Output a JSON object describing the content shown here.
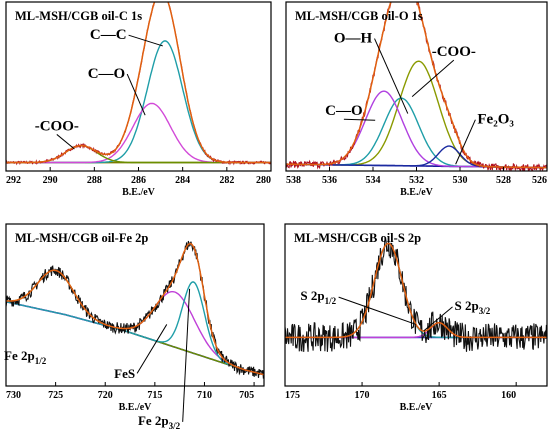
{
  "chart_data": [
    {
      "type": "line",
      "title": "ML-MSH/CGB oil-C 1s",
      "xlabel": "B.E./eV",
      "xlim": [
        292,
        280
      ],
      "ticks": [
        292,
        290,
        288,
        286,
        284,
        282,
        280
      ],
      "tick_labels": [
        "292",
        "290",
        "288",
        "286",
        "284",
        "282",
        "280"
      ],
      "y_axis_visible": false,
      "noise": 0.008,
      "background": {
        "name": "",
        "x": [
          292,
          280
        ],
        "y": [
          0.05,
          0.05
        ],
        "color": "#7a7a00"
      },
      "components": [
        {
          "name": "C—C",
          "center": 284.8,
          "amp": 0.72,
          "width": 0.8,
          "color": "#1f9ea8"
        },
        {
          "name": "C—O",
          "center": 285.4,
          "amp": 0.35,
          "width": 0.85,
          "color": "#d24ad8"
        },
        {
          "name": "-COO-",
          "center": 288.6,
          "amp": 0.1,
          "width": 0.7,
          "color": "#6b8f00"
        }
      ],
      "envelope_color": "#e06010",
      "raw_color": "#b01020",
      "labels": [
        {
          "text": "C—C",
          "at": [
            288.2,
            0.78
          ],
          "line_to": [
            284.9,
            0.74
          ]
        },
        {
          "text": "C—O",
          "at": [
            288.3,
            0.55
          ],
          "line_to": [
            285.7,
            0.33
          ]
        },
        {
          "text": "-COO-",
          "at": [
            290.7,
            0.24
          ],
          "line_to": [
            288.9,
            0.13
          ]
        }
      ]
    },
    {
      "type": "line",
      "title": "ML-MSH/CGB oil-O 1s",
      "xlabel": "B.E./eV",
      "xlim": [
        538,
        526
      ],
      "ticks": [
        538,
        536,
        534,
        532,
        530,
        528,
        526
      ],
      "tick_labels": [
        "538",
        "536",
        "534",
        "532",
        "530",
        "528",
        "526"
      ],
      "y_axis_visible": false,
      "noise": 0.02,
      "background": {
        "name": "",
        "x": [
          538,
          526
        ],
        "y": [
          0.04,
          0.02
        ],
        "color": "#1a1aa0"
      },
      "components": [
        {
          "name": "-COO-",
          "center": 531.9,
          "amp": 0.62,
          "width": 0.9,
          "color": "#8a9a00"
        },
        {
          "name": "O—H",
          "center": 532.7,
          "amp": 0.4,
          "width": 0.8,
          "color": "#1f9ea8"
        },
        {
          "name": "C—O",
          "center": 533.5,
          "amp": 0.44,
          "width": 0.85,
          "color": "#b040e0"
        },
        {
          "name": "Fe₂O₃",
          "center": 530.5,
          "amp": 0.12,
          "width": 0.5,
          "color": "#1a2aa0"
        }
      ],
      "envelope_color": "#e06010",
      "raw_color": "#b01020",
      "labels": [
        {
          "text": "O—H",
          "at": [
            535.8,
            0.76
          ],
          "line_to": [
            532.4,
            0.34
          ]
        },
        {
          "text": "-COO-",
          "at": [
            531.3,
            0.68
          ],
          "line_to": [
            532.2,
            0.44
          ]
        },
        {
          "text": "C—O",
          "at": [
            536.2,
            0.33
          ],
          "line_to": [
            533.9,
            0.3
          ]
        },
        {
          "text": "Fe₂O₃",
          "at": [
            529.2,
            0.28
          ],
          "line_to": [
            530.2,
            0.04
          ]
        }
      ]
    },
    {
      "type": "line",
      "title": "ML-MSH/CGB oil-Fe 2p",
      "xlabel": "B.E./eV",
      "xlim": [
        730,
        704
      ],
      "ticks": [
        730,
        725,
        720,
        715,
        710,
        705
      ],
      "tick_labels": [
        "730",
        "725",
        "720",
        "715",
        "710",
        "705"
      ],
      "y_axis_visible": false,
      "noise": 0.035,
      "background": {
        "name": "",
        "x": [
          730,
          724,
          718,
          714,
          710,
          706,
          704
        ],
        "y": [
          0.52,
          0.44,
          0.34,
          0.26,
          0.18,
          0.1,
          0.07
        ],
        "color": "#1a1aa0"
      },
      "components": [
        {
          "name": "Fe 2p1/2",
          "center": 725.0,
          "amp": 0.26,
          "width": 1.8,
          "color": "#6b8f00"
        },
        {
          "name": "FeS",
          "center": 713.0,
          "amp": 0.34,
          "width": 2.0,
          "color": "#c040d8"
        },
        {
          "name": "Fe 2p3/2",
          "center": 711.1,
          "amp": 0.44,
          "width": 1.1,
          "color": "#1f9ea8"
        }
      ],
      "envelope_color": "#e06010",
      "raw_color": "#101010",
      "labels": [
        {
          "text": "Fe 2p",
          "sub": "1/2",
          "at": [
            730.2,
            0.16
          ],
          "line_to": null
        },
        {
          "text": "FeS",
          "at": [
            719.1,
            0.05
          ],
          "line_to": [
            713.8,
            0.38
          ]
        },
        {
          "text": "Fe 2p",
          "sub": "3/2",
          "at": [
            716.7,
            -0.24
          ],
          "line_to": [
            711.5,
            0.6
          ]
        }
      ]
    },
    {
      "type": "line",
      "title": "ML-MSH/CGB oil-S 2p",
      "xlabel": "B.E./eV",
      "xlim": [
        175,
        158
      ],
      "ticks": [
        175,
        170,
        165,
        160
      ],
      "tick_labels": [
        "175",
        "170",
        "165",
        "160"
      ],
      "y_axis_visible": false,
      "noise": 0.09,
      "background": {
        "name": "",
        "x": [
          175,
          158
        ],
        "y": [
          0.3,
          0.3
        ],
        "color": "#4040c0"
      },
      "components": [
        {
          "name": "S 2p1/2",
          "center": 168.3,
          "amp": 0.58,
          "width": 0.9,
          "color": "#1f9ea8"
        },
        {
          "name": "S 2p3/2",
          "center": 165.0,
          "amp": 0.09,
          "width": 0.55,
          "color": "#c040d8"
        }
      ],
      "envelope_color": "#e06010",
      "raw_color": "#101010",
      "labels": [
        {
          "text": "S 2p",
          "sub": "1/2",
          "at": [
            174.0,
            0.53
          ],
          "line_to": [
            166.5,
            0.38
          ]
        },
        {
          "text": "S 2p",
          "sub": "3/2",
          "at": [
            164.0,
            0.47
          ],
          "line_to": [
            166.0,
            0.34
          ]
        }
      ]
    }
  ]
}
